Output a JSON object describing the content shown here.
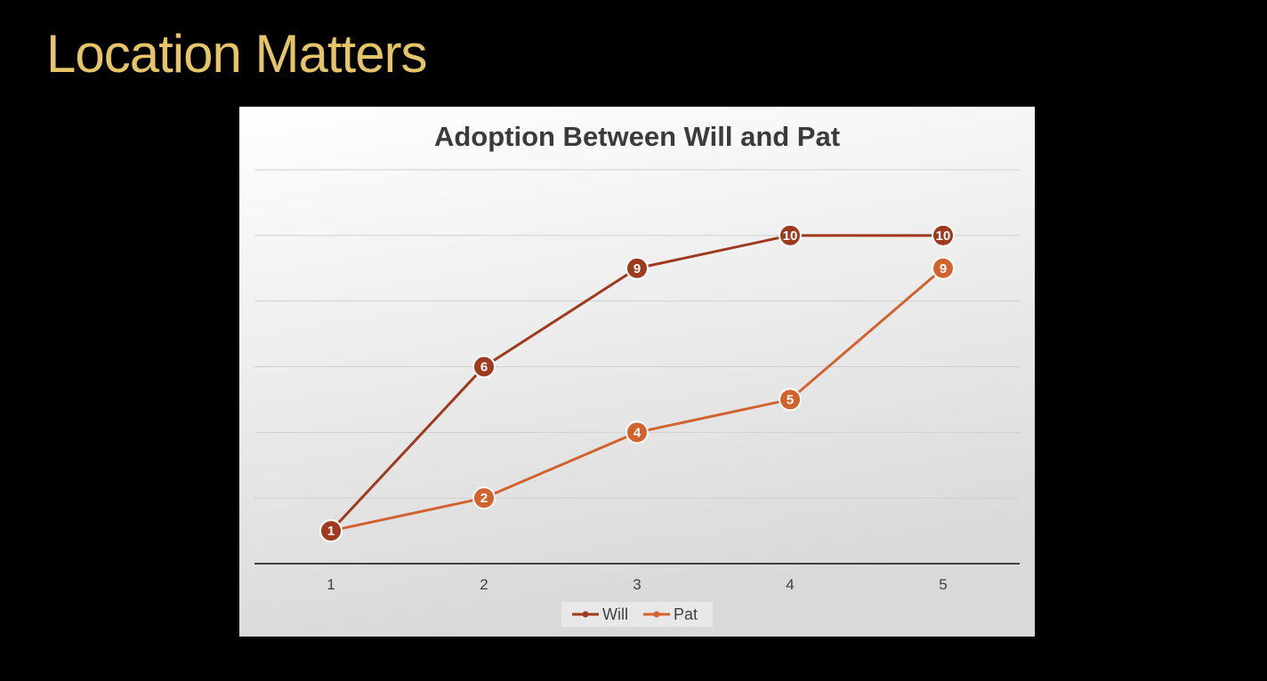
{
  "slide": {
    "title": "Location Matters"
  },
  "chart_data": {
    "type": "line",
    "title": "Adoption Between Will and Pat",
    "xlabel": "",
    "ylabel": "",
    "x": [
      1,
      2,
      3,
      4,
      5
    ],
    "x_tick_labels": [
      "1",
      "2",
      "3",
      "4",
      "5"
    ],
    "ylim": [
      0,
      12
    ],
    "y_gridline_step": 2,
    "y_tick_labels_shown": false,
    "grid": true,
    "legend_position": "bottom",
    "data_labels": true,
    "series": [
      {
        "name": "Will",
        "values": [
          1,
          6,
          9,
          10,
          10
        ],
        "color": "#9E3A1E"
      },
      {
        "name": "Pat",
        "values": [
          1,
          2,
          4,
          5,
          9
        ],
        "color": "#D2632E"
      }
    ],
    "colors": {
      "background_top": "#FFFFFF",
      "background_bottom": "#D9D9D9",
      "gridline": "#D0D0D0",
      "axis": "#404040"
    }
  }
}
